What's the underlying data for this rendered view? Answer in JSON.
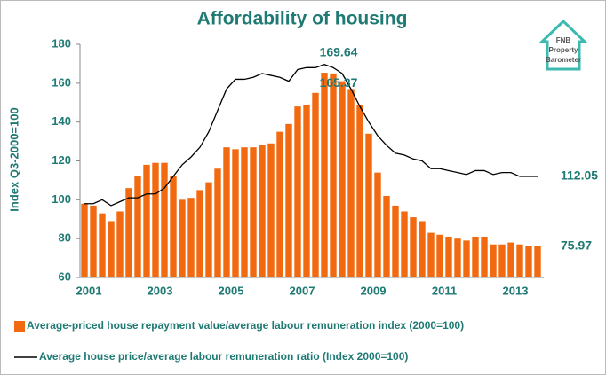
{
  "logo": [
    "FNB",
    "Property",
    "Barometer"
  ],
  "chart_data": {
    "type": "bar-line",
    "title": "Affordability of housing",
    "ylabel": "Index Q3-2000=100",
    "categories": [
      "2001",
      null,
      null,
      null,
      null,
      null,
      null,
      null,
      "2003",
      null,
      null,
      null,
      null,
      null,
      null,
      null,
      "2005",
      null,
      null,
      null,
      null,
      null,
      null,
      null,
      "2007",
      null,
      null,
      null,
      null,
      null,
      null,
      null,
      "2009",
      null,
      null,
      null,
      null,
      null,
      null,
      null,
      "2011",
      null,
      null,
      null,
      null,
      null,
      null,
      null,
      "2013",
      null,
      null,
      null
    ],
    "series": [
      {
        "name": "Average-priced house repayment value/average labour remuneration index (2000=100)",
        "type": "bar",
        "color": "#f26a10",
        "values": [
          98,
          97,
          93,
          89,
          94,
          106,
          112,
          118,
          119,
          119,
          112,
          100,
          101,
          105,
          109,
          116,
          127,
          126,
          127,
          127,
          128,
          129,
          135,
          139,
          148,
          149,
          155,
          165.37,
          165,
          161,
          157,
          149,
          134,
          114,
          102,
          97,
          94,
          91,
          89,
          83,
          82,
          81,
          80,
          79,
          81,
          81,
          77,
          77,
          78,
          77,
          76,
          75.97
        ]
      },
      {
        "name": "Average house price/average labour remuneration ratio (Index 2000=100)",
        "type": "line",
        "color": "#000000",
        "values": [
          98,
          98,
          100,
          97,
          99,
          101,
          101,
          103,
          103,
          106,
          112,
          118,
          122,
          127,
          135,
          146,
          157,
          162,
          162,
          163,
          165,
          164,
          163,
          161,
          167,
          168,
          168,
          169.64,
          168,
          165,
          157,
          148,
          140,
          133,
          128,
          124,
          123,
          121,
          120,
          116,
          116,
          115,
          114,
          113,
          115,
          115,
          113,
          114,
          114,
          112,
          112,
          112.05
        ]
      }
    ],
    "labeled_points": [
      [
        1,
        27
      ],
      [
        0,
        27
      ],
      [
        1,
        51
      ],
      [
        0,
        51
      ]
    ],
    "ylim": [
      60,
      180
    ],
    "yticks": [
      60,
      80,
      100,
      120,
      140,
      160,
      180
    ]
  }
}
